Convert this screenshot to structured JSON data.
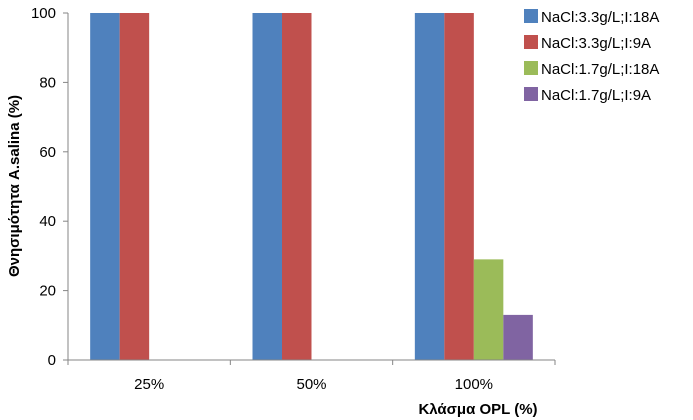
{
  "chart_data": {
    "type": "bar",
    "categories": [
      "25%",
      "50%",
      "100%"
    ],
    "series": [
      {
        "name": "NaCl:3.3g/L;I:18A",
        "color": "#4F81BD",
        "values": [
          100,
          100,
          100
        ]
      },
      {
        "name": "NaCl:3.3g/L;I:9A",
        "color": "#C0504D",
        "values": [
          100,
          100,
          100
        ]
      },
      {
        "name": "NaCl:1.7g/L;I:18A",
        "color": "#9BBB59",
        "values": [
          0,
          0,
          29
        ]
      },
      {
        "name": "NaCl:1.7g/L;I:9A",
        "color": "#8064A2",
        "values": [
          0,
          0,
          13
        ]
      }
    ],
    "xlabel": "Κλάσμα OPL (%)",
    "ylabel": "Θνησιμότητα A.salina (%)",
    "ylim": [
      0,
      100
    ],
    "yticks": [
      0,
      20,
      40,
      60,
      80,
      100
    ],
    "grid": false,
    "legend": "right"
  }
}
